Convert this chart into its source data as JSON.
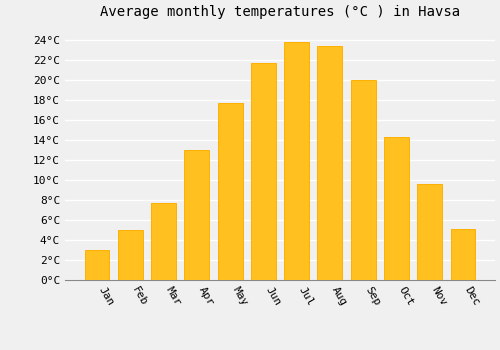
{
  "title": "Average monthly temperatures (°C ) in Havsa",
  "months": [
    "Jan",
    "Feb",
    "Mar",
    "Apr",
    "May",
    "Jun",
    "Jul",
    "Aug",
    "Sep",
    "Oct",
    "Nov",
    "Dec"
  ],
  "values": [
    3.0,
    5.0,
    7.7,
    13.0,
    17.7,
    21.7,
    23.8,
    23.4,
    20.0,
    14.3,
    9.6,
    5.1
  ],
  "bar_color": "#FFC020",
  "bar_edge_color": "#FFB000",
  "background_color": "#F0F0F0",
  "grid_color": "#FFFFFF",
  "yticks": [
    0,
    2,
    4,
    6,
    8,
    10,
    12,
    14,
    16,
    18,
    20,
    22,
    24
  ],
  "ylim": [
    0,
    25.5
  ],
  "title_fontsize": 10,
  "tick_fontsize": 8,
  "font_family": "monospace"
}
